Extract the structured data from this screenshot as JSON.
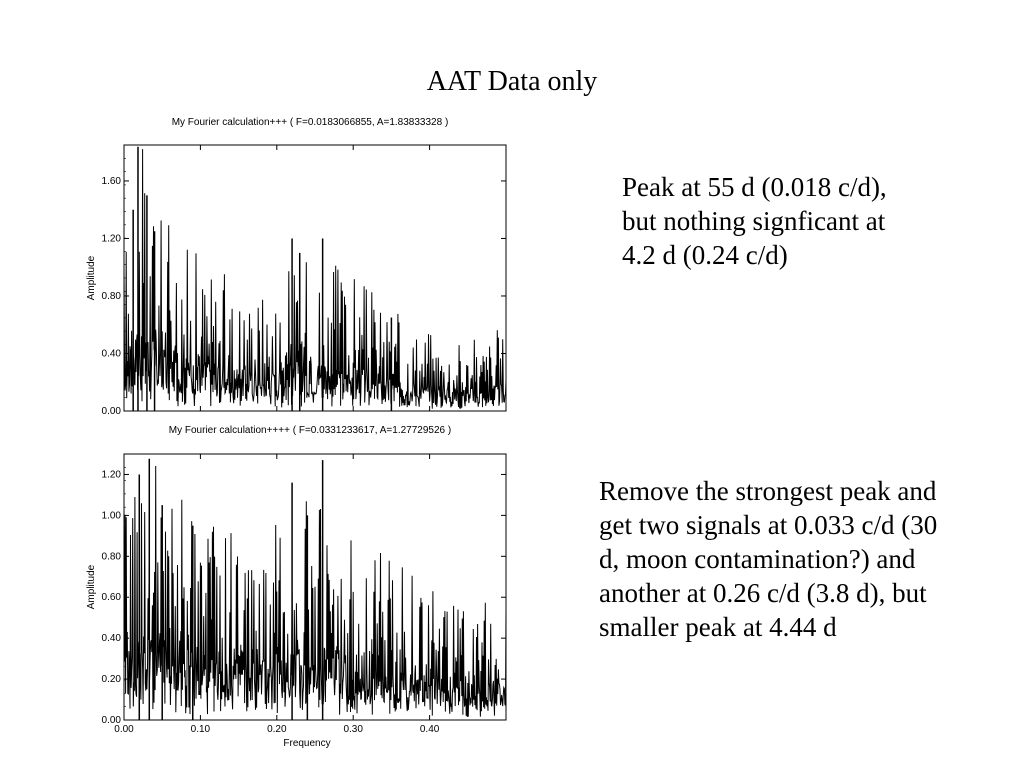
{
  "slide": {
    "title": "AAT Data only",
    "note_1": "Peak at 55 d (0.018 c/d), but nothing signficant at 4.2 d (0.24 c/d)",
    "note_2": "Remove the strongest peak and get two signals at 0.033 c/d (30 d, moon contamination?) and another at 0.26 c/d (3.8 d), but smaller peak at 4.44 d"
  },
  "chart_data": [
    {
      "type": "line",
      "title": "My Fourier calculation+++ ( F=0.0183066855, A=1.83833328 )",
      "xlabel": "",
      "ylabel": "Amplitude",
      "xlim": [
        0,
        0.5
      ],
      "ylim": [
        0,
        1.85
      ],
      "yticks": [
        "0.00",
        "0.40",
        "0.80",
        "1.20",
        "1.60"
      ],
      "xticks": [],
      "grid": false,
      "peak": {
        "x": 0.0183,
        "y": 1.838
      },
      "envelope": {
        "x": [
          0,
          0.02,
          0.05,
          0.1,
          0.15,
          0.2,
          0.22,
          0.25,
          0.3,
          0.35,
          0.4,
          0.45,
          0.5
        ],
        "y": [
          0.6,
          0.95,
          0.7,
          0.55,
          0.45,
          0.45,
          0.55,
          0.55,
          0.5,
          0.35,
          0.3,
          0.25,
          0.3
        ]
      },
      "spikes": [
        {
          "x": 0.0183,
          "y": 1.838
        },
        {
          "x": 0.03,
          "y": 1.5
        },
        {
          "x": 0.012,
          "y": 1.4
        },
        {
          "x": 0.04,
          "y": 1.25
        },
        {
          "x": 0.22,
          "y": 1.2
        },
        {
          "x": 0.26,
          "y": 1.2
        },
        {
          "x": 0.23,
          "y": 1.1
        },
        {
          "x": 0.35,
          "y": 0.65
        }
      ]
    },
    {
      "type": "line",
      "title": "My Fourier calculation++++ ( F=0.0331233617, A=1.27729526 )",
      "xlabel": "Frequency",
      "ylabel": "Amplitude",
      "xlim": [
        0,
        0.5
      ],
      "ylim": [
        0,
        1.3
      ],
      "yticks": [
        "0.00",
        "0.20",
        "0.40",
        "0.60",
        "0.80",
        "1.00",
        "1.20"
      ],
      "xticks": [
        "0.00",
        "0.10",
        "0.20",
        "0.30",
        "0.40"
      ],
      "grid": false,
      "peak": {
        "x": 0.0331,
        "y": 1.277
      },
      "envelope": {
        "x": [
          0,
          0.03,
          0.05,
          0.1,
          0.15,
          0.2,
          0.22,
          0.26,
          0.3,
          0.35,
          0.4,
          0.45,
          0.5
        ],
        "y": [
          0.55,
          0.65,
          0.6,
          0.5,
          0.45,
          0.5,
          0.55,
          0.55,
          0.45,
          0.4,
          0.35,
          0.3,
          0.3
        ]
      },
      "spikes": [
        {
          "x": 0.0331,
          "y": 1.277
        },
        {
          "x": 0.26,
          "y": 1.27
        },
        {
          "x": 0.22,
          "y": 1.16
        },
        {
          "x": 0.02,
          "y": 1.2
        },
        {
          "x": 0.05,
          "y": 1.05
        },
        {
          "x": 0.24,
          "y": 1.0
        },
        {
          "x": 0.09,
          "y": 0.95
        }
      ]
    }
  ]
}
